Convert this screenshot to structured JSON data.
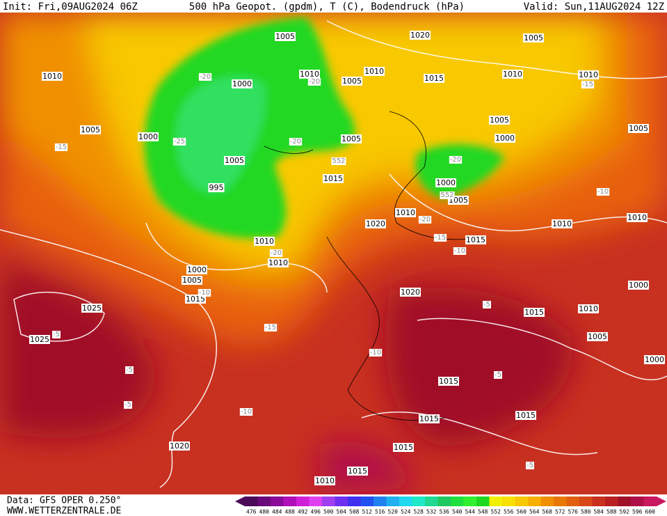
{
  "header": {
    "init": "Init: Fri,09AUG2024 06Z",
    "title": "500 hPa Geopot. (gpdm), T (C), Bodendruck (hPa)",
    "valid": "Valid: Sun,11AUG2024 12Z"
  },
  "footer": {
    "data": "Data: GFS OPER 0.250°",
    "site": "WWW.WETTERZENTRALE.DE"
  },
  "scale": {
    "labels": [
      476,
      480,
      484,
      488,
      492,
      496,
      500,
      504,
      508,
      512,
      516,
      520,
      524,
      528,
      532,
      536,
      540,
      544,
      548,
      552,
      556,
      560,
      564,
      568,
      572,
      576,
      580,
      584,
      588,
      592,
      596,
      600
    ],
    "colors": [
      "#4b0a5a",
      "#6a0a7a",
      "#8a0a9a",
      "#b010b8",
      "#d020d8",
      "#e040f0",
      "#a040f0",
      "#7030f0",
      "#4030f0",
      "#2050f0",
      "#2080f0",
      "#20b0f0",
      "#20d8f0",
      "#20e8c8",
      "#20d890",
      "#20c860",
      "#20e040",
      "#30f030",
      "#20d820",
      "#f0f000",
      "#f8e000",
      "#f8c800",
      "#f8b000",
      "#f09000",
      "#e87800",
      "#e06010",
      "#d84818",
      "#c83020",
      "#b82020",
      "#a01028",
      "#b01048",
      "#c81860"
    ]
  },
  "map": {
    "pressure_labels": [
      1010,
      1005,
      1000,
      1005,
      1010,
      1010,
      1005,
      1000,
      1020,
      1015,
      1005,
      1010,
      1010,
      1005,
      1000,
      1005,
      1005,
      995,
      1015,
      1000,
      1005,
      1010,
      1020,
      1010,
      1015,
      1010,
      1010,
      1000,
      1005,
      1015,
      1020,
      1025,
      1025,
      1015,
      1010,
      1005,
      1000,
      1005,
      1010,
      1015,
      1015,
      1015,
      1015,
      1015,
      1010,
      1020,
      1000
    ],
    "temperature_labels": [
      -20,
      -15,
      -25,
      -20,
      -20,
      552,
      -20,
      552,
      -20,
      -15,
      -10,
      -20,
      -10,
      -15,
      -10,
      -5,
      -15,
      -10,
      -5,
      -5,
      -5,
      -10,
      -5,
      -5
    ]
  }
}
